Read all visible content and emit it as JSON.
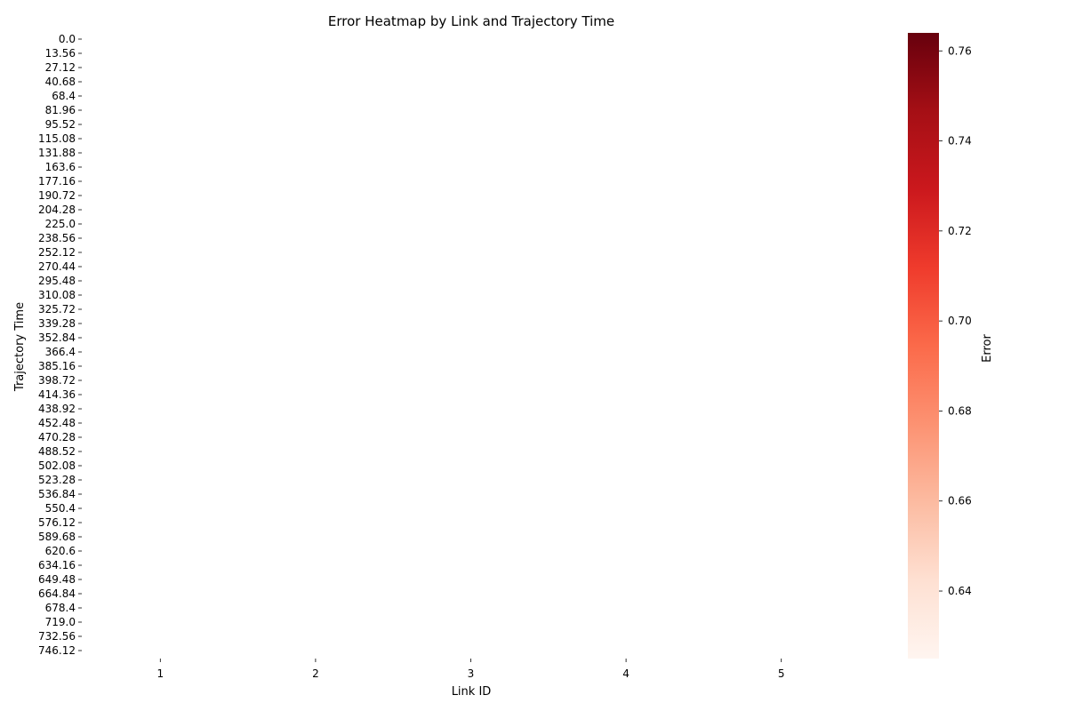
{
  "chart_data": {
    "type": "heatmap",
    "title": "Error Heatmap by Link and Trajectory Time",
    "xlabel": "Link ID",
    "ylabel": "Trajectory Time",
    "x_categories": [
      "1",
      "2",
      "3",
      "4",
      "5"
    ],
    "y_categories": [
      "0.0",
      "13.56",
      "27.12",
      "40.68",
      "68.4",
      "81.96",
      "95.52",
      "115.08",
      "131.88",
      "163.6",
      "177.16",
      "190.72",
      "204.28",
      "225.0",
      "238.56",
      "252.12",
      "270.44",
      "295.48",
      "310.08",
      "325.72",
      "339.28",
      "352.84",
      "366.4",
      "385.16",
      "398.72",
      "414.36",
      "438.92",
      "452.48",
      "470.28",
      "488.52",
      "502.08",
      "523.28",
      "536.84",
      "550.4",
      "576.12",
      "589.68",
      "620.6",
      "634.16",
      "649.48",
      "664.84",
      "678.4",
      "719.0",
      "732.56",
      "746.12"
    ],
    "values": [],
    "colorbar": {
      "label": "Error",
      "colormap": "Reds",
      "vmin": 0.625,
      "vmax": 0.764,
      "ticks": [
        "0.64",
        "0.66",
        "0.68",
        "0.70",
        "0.72",
        "0.74",
        "0.76"
      ],
      "tick_values": [
        0.64,
        0.66,
        0.68,
        0.7,
        0.72,
        0.74,
        0.76
      ],
      "color_stops": [
        "#fff5f0",
        "#fee0d2",
        "#fcbba1",
        "#fc9272",
        "#fb6a4a",
        "#ef3b2c",
        "#cb181d",
        "#a50f15",
        "#67000d"
      ]
    }
  }
}
